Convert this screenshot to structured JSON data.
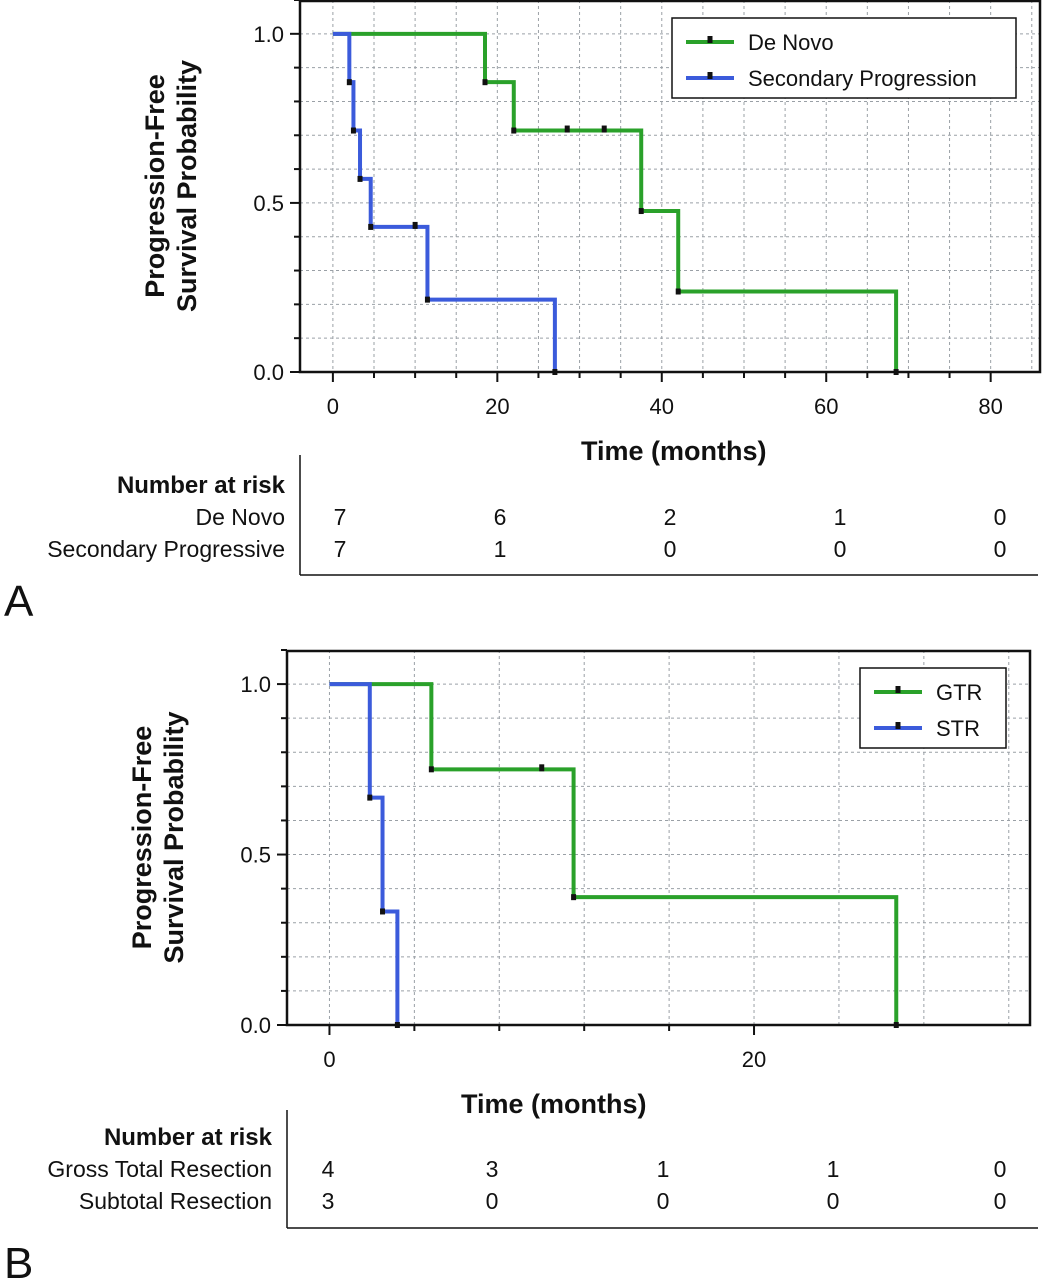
{
  "chart_data": [
    {
      "type": "line",
      "panel_label": "A",
      "xlabel": "Time (months)",
      "ylabel": [
        "Progression-Free",
        "Survival Probability"
      ],
      "xlim": [
        -4,
        86
      ],
      "ylim": [
        0,
        1.1
      ],
      "xticks": [
        0,
        20,
        40,
        60,
        80
      ],
      "yticks": [
        0.0,
        0.5,
        1.0
      ],
      "ytick_labels": [
        "0.0",
        "0.5",
        "1.0"
      ],
      "x_minor_step": 5,
      "y_minor_step": 0.1,
      "grid": true,
      "legend_position": "top-right",
      "series": [
        {
          "name": "De Novo",
          "color": "#2aa12a",
          "steps": [
            [
              0,
              1.0
            ],
            [
              18.5,
              0.857
            ],
            [
              22,
              0.714
            ],
            [
              37.5,
              0.476
            ],
            [
              42,
              0.238
            ],
            [
              68.5,
              0.0
            ]
          ],
          "censored": [
            [
              28.5,
              0.714
            ],
            [
              33,
              0.714
            ]
          ],
          "end_x": 68.5
        },
        {
          "name": "Secondary Progression",
          "color": "#3b5bdb",
          "steps": [
            [
              0,
              1.0
            ],
            [
              2,
              0.857
            ],
            [
              2.5,
              0.714
            ],
            [
              3.3,
              0.571
            ],
            [
              4.6,
              0.429
            ],
            [
              11.5,
              0.214
            ],
            [
              27,
              0.0
            ]
          ],
          "censored": [
            [
              10,
              0.429
            ]
          ],
          "end_x": 27
        }
      ],
      "risk_table": {
        "title": "Number at risk",
        "times": [
          0,
          20,
          40,
          60,
          80
        ],
        "rows": [
          {
            "label": "De Novo",
            "values": [
              "7",
              "6",
              "2",
              "1",
              "0"
            ]
          },
          {
            "label": "Secondary Progressive",
            "values": [
              "7",
              "1",
              "0",
              "0",
              "0"
            ]
          }
        ]
      }
    },
    {
      "type": "line",
      "panel_label": "B",
      "xlabel": "Time (months)",
      "ylabel": [
        "Progression-Free",
        "Survival Probability"
      ],
      "xlim": [
        -2,
        33
      ],
      "ylim": [
        0,
        1.1
      ],
      "xticks": [
        0,
        20
      ],
      "yticks": [
        0.0,
        0.5,
        1.0
      ],
      "ytick_labels": [
        "0.0",
        "0.5",
        "1.0"
      ],
      "x_minor_step": 4,
      "y_minor_step": 0.1,
      "grid": true,
      "legend_position": "top-right",
      "series": [
        {
          "name": "GTR",
          "color": "#2aa12a",
          "steps": [
            [
              0,
              1.0
            ],
            [
              4.8,
              0.75
            ],
            [
              11.5,
              0.375
            ],
            [
              26.7,
              0.0
            ]
          ],
          "censored": [
            [
              10,
              0.75
            ]
          ],
          "end_x": 26.7
        },
        {
          "name": "STR",
          "color": "#3b5bdb",
          "steps": [
            [
              0,
              1.0
            ],
            [
              1.9,
              0.667
            ],
            [
              2.5,
              0.333
            ],
            [
              3.2,
              0.0
            ]
          ],
          "censored": [],
          "end_x": 3.2
        }
      ],
      "risk_table": {
        "title": "Number at risk",
        "times": [
          0,
          8,
          16,
          24,
          32
        ],
        "rows": [
          {
            "label": "Gross Total Resection",
            "values": [
              "4",
              "3",
              "1",
              "1",
              "0"
            ]
          },
          {
            "label": "Subtotal Resection",
            "values": [
              "3",
              "0",
              "0",
              "0",
              "0"
            ]
          }
        ]
      }
    }
  ]
}
